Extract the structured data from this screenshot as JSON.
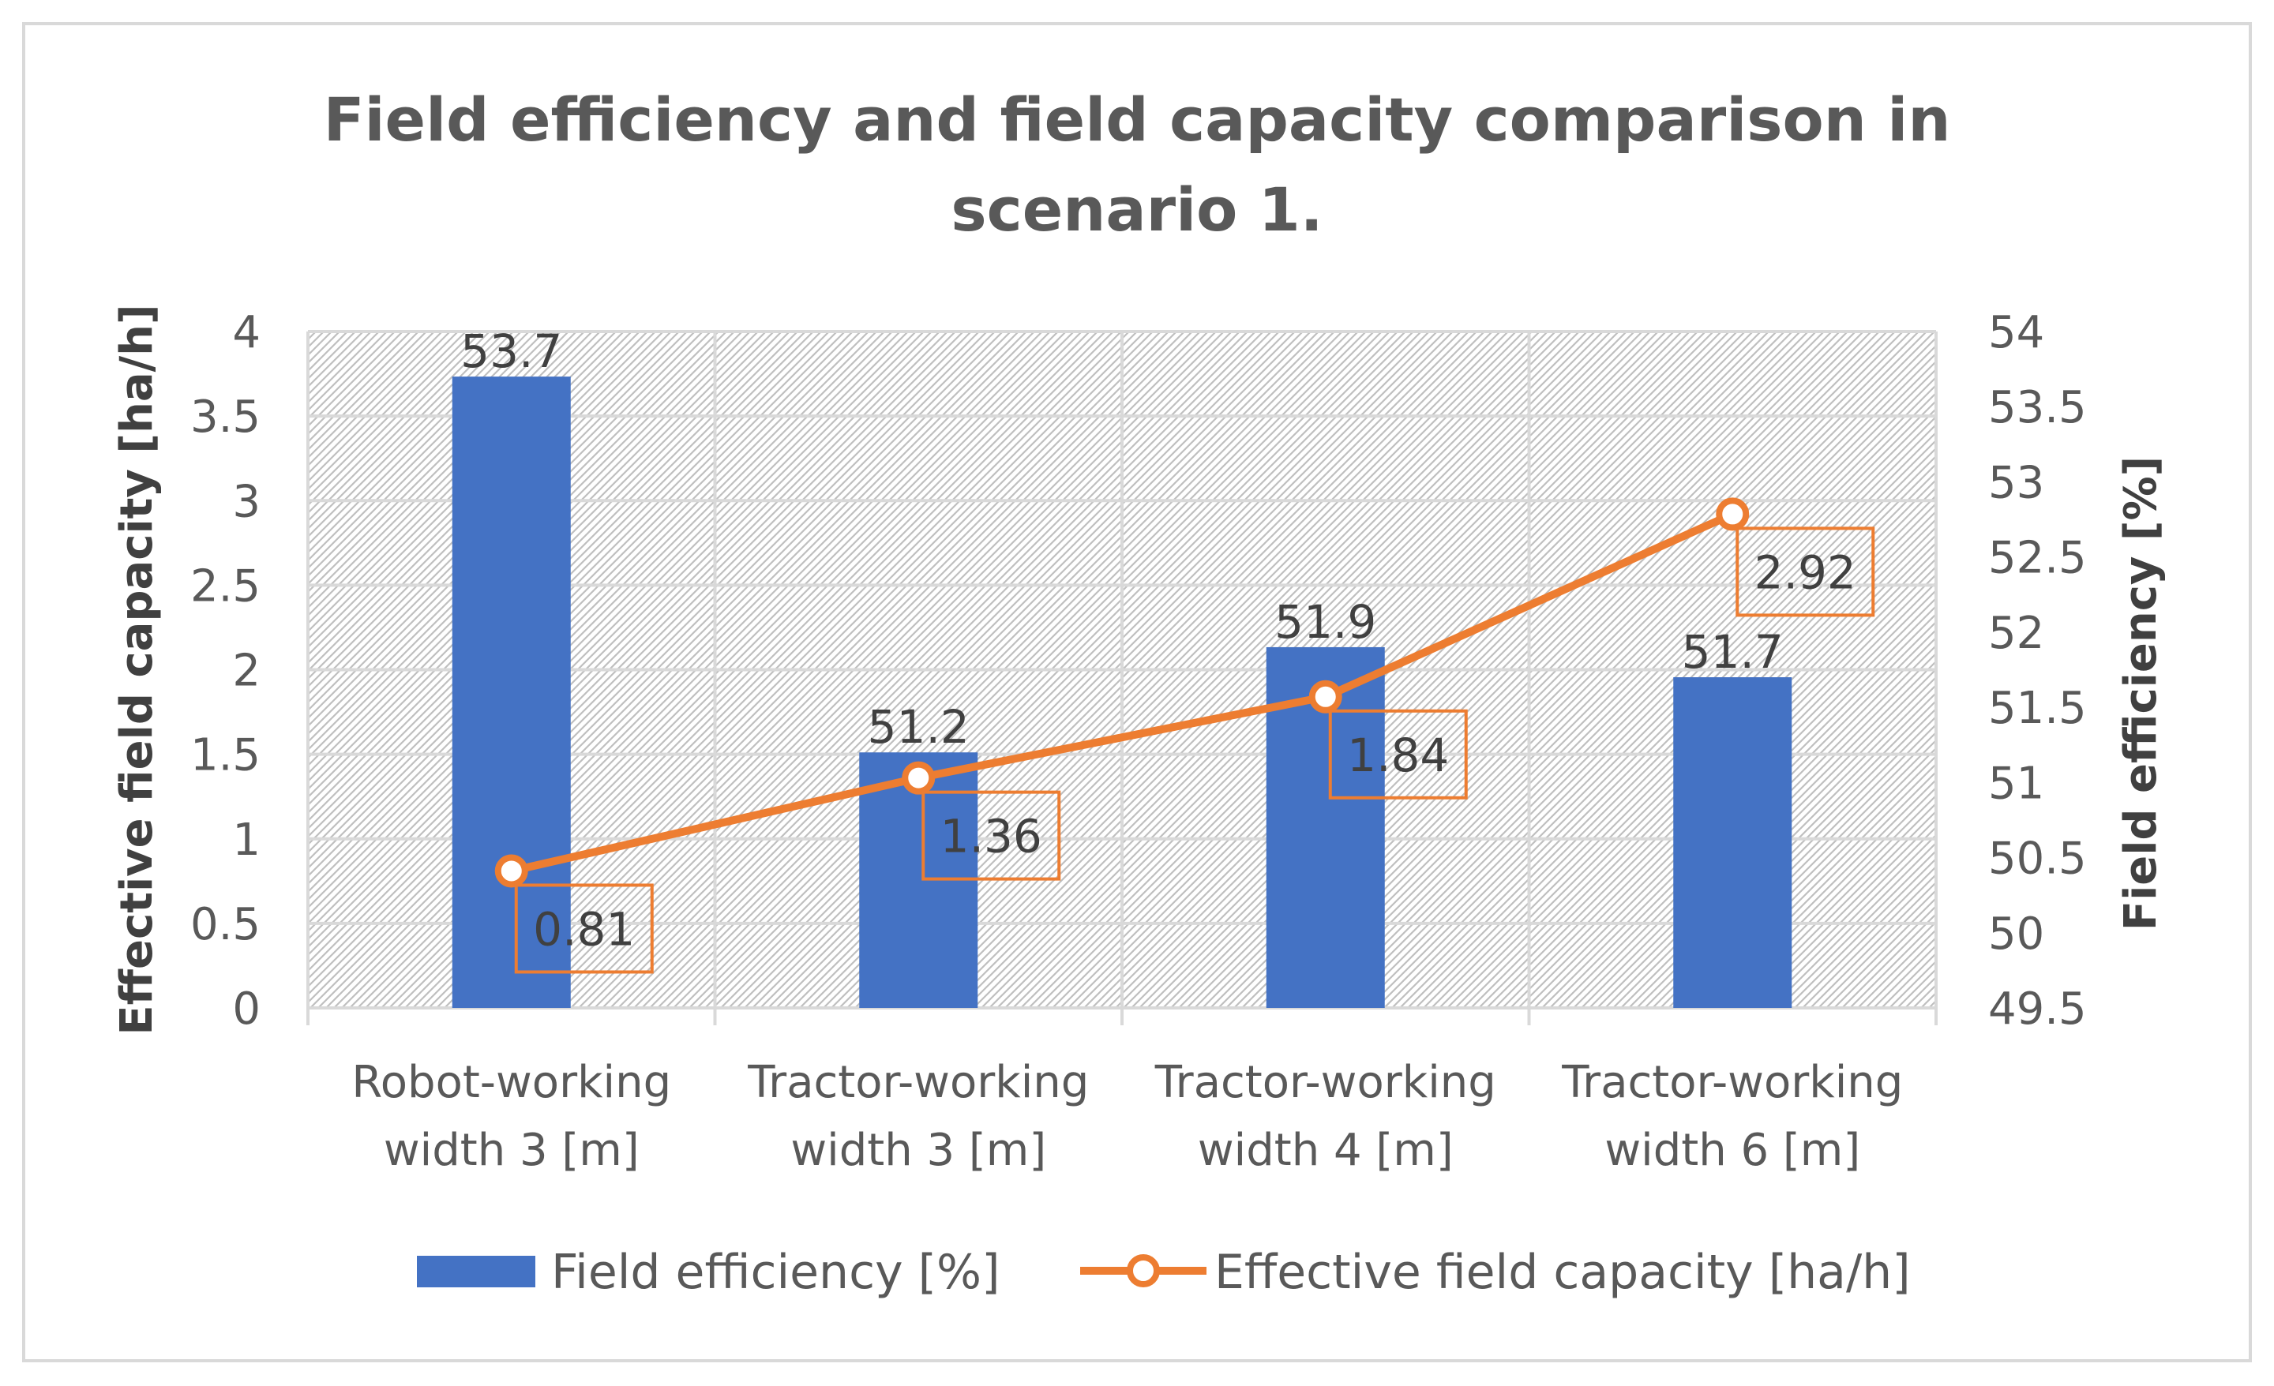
{
  "chart_data": {
    "type": "bar+line",
    "title": "Field efficiency and field capacity comparison in",
    "title_line2": "scenario 1.",
    "categories": [
      [
        "Robot-working",
        "width 3 [m]"
      ],
      [
        "Tractor-working",
        "width 3 [m]"
      ],
      [
        "Tractor-working",
        "width 4 [m]"
      ],
      [
        "Tractor-working",
        "width 6 [m]"
      ]
    ],
    "series": [
      {
        "name": "Field efficiency [%]",
        "type": "bar",
        "axis": "right",
        "color": "#4472C4",
        "values": [
          53.7,
          51.2,
          51.9,
          51.7
        ],
        "labels": [
          "53.7",
          "51.2",
          "51.9",
          "51.7"
        ]
      },
      {
        "name": "Effective field capacity [ha/h]",
        "type": "line",
        "axis": "left",
        "color": "#ED7D31",
        "values": [
          0.81,
          1.36,
          1.84,
          2.92
        ],
        "labels": [
          "0.81",
          "1.36",
          "1.84",
          "2.92"
        ]
      }
    ],
    "left_axis": {
      "label": "Effective field capacity [ha/h]",
      "min": 0,
      "max": 4,
      "step": 0.5,
      "ticks": [
        "0",
        "0.5",
        "1",
        "1.5",
        "2",
        "2.5",
        "3",
        "3.5",
        "4"
      ]
    },
    "right_axis": {
      "label": "Field efficiency [%]",
      "min": 49.5,
      "max": 54,
      "step": 0.5,
      "ticks": [
        "49.5",
        "50",
        "50.5",
        "51",
        "51.5",
        "52",
        "52.5",
        "53",
        "53.5",
        "54"
      ]
    },
    "legend_position": "bottom",
    "grid": true
  }
}
